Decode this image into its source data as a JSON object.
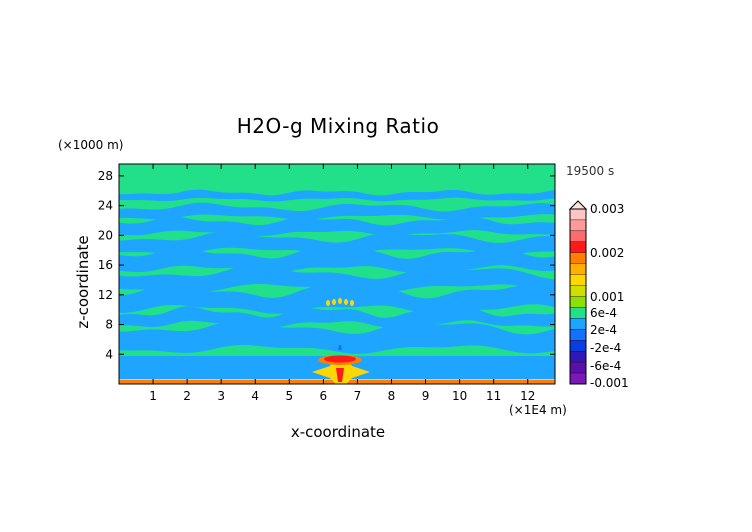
{
  "chart_data": {
    "type": "heatmap",
    "title": "H2O-g Mixing Ratio",
    "xlabel": "x-coordinate",
    "ylabel": "z-coordinate",
    "x_unit": "(×1E4 m)",
    "z_unit": "(×1000 m)",
    "time_label": "19500 s",
    "xlim": [
      0,
      12.8
    ],
    "ylim": [
      0,
      29.6
    ],
    "x_ticks": [
      "1",
      "2",
      "3",
      "4",
      "5",
      "6",
      "7",
      "8",
      "9",
      "10",
      "11",
      "12"
    ],
    "y_ticks": [
      "4",
      "8",
      "12",
      "16",
      "20",
      "24",
      "28"
    ],
    "colorbar_labels": [
      "0.003",
      "0.002",
      "0.001",
      "6e-4",
      "2e-4",
      "-2e-4",
      "-6e-4",
      "-0.001"
    ],
    "colorbar_colors": [
      "#ffc4c4",
      "#ff9a9a",
      "#ff6a6a",
      "#ff1a1a",
      "#ff7f00",
      "#ffb000",
      "#ffd700",
      "#cfe000",
      "#8fe000",
      "#22e08a",
      "#1ea5ff",
      "#1272ff",
      "#0a3ce0",
      "#3018b8",
      "#5a10a8",
      "#7a18b8"
    ],
    "background_color": "#22e08a",
    "band_color": "#1ea5ff"
  }
}
